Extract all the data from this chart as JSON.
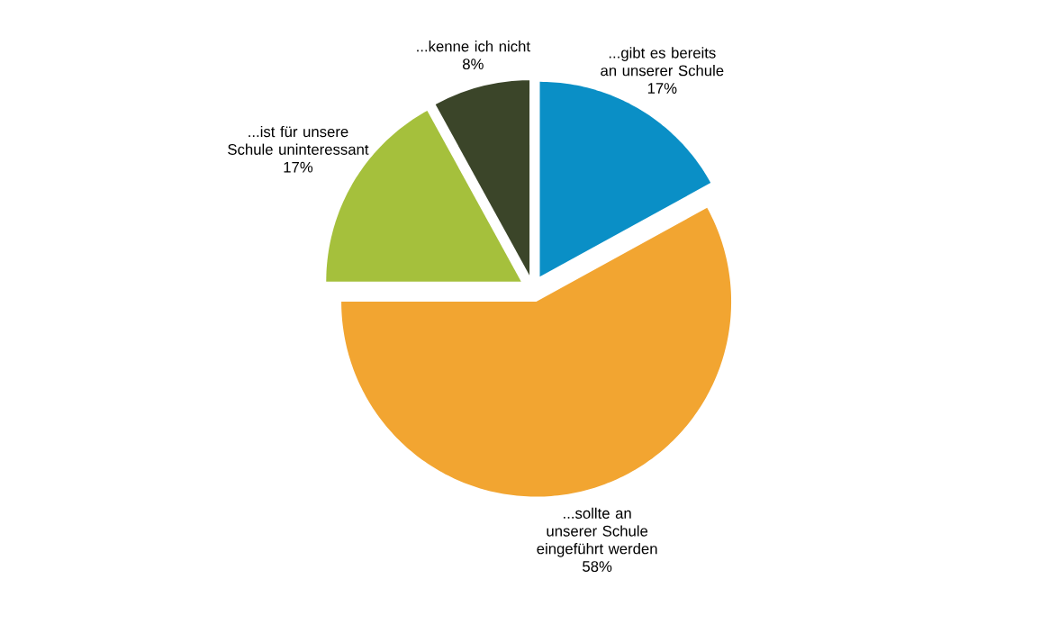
{
  "chart_data": {
    "type": "pie",
    "categories": [
      "...gibt es bereits an unserer Schule",
      "...sollte an unserer Schule eingeführt werden",
      "...ist für unsere Schule uninteressant",
      "...kenne ich nicht"
    ],
    "values": [
      17,
      58,
      17,
      8
    ],
    "colors": [
      "#0a8fc6",
      "#f2a531",
      "#a5c03c",
      "#3b4529"
    ],
    "value_labels": [
      "17%",
      "58%",
      "17%",
      "8%"
    ]
  }
}
